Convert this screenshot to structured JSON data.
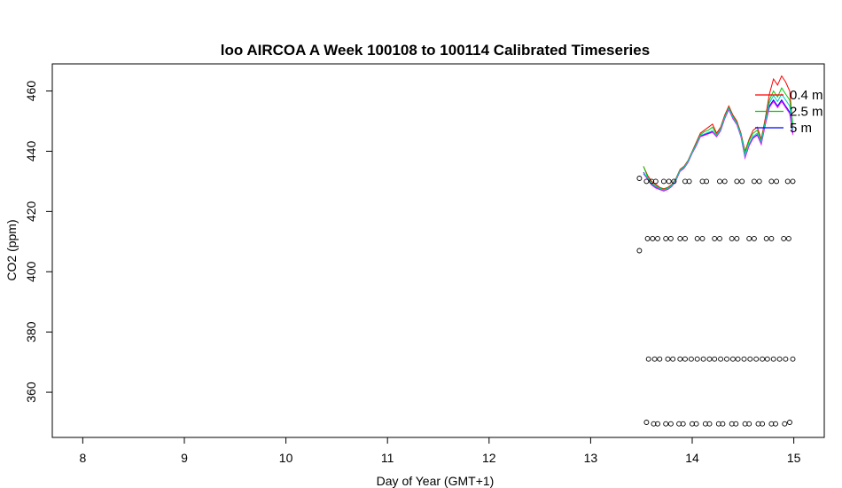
{
  "chart_data": {
    "type": "line",
    "title": "loo AIRCOA A  Week 100108 to 100114  Calibrated Timeseries",
    "xlabel": "Day of Year (GMT+1)",
    "ylabel": "CO2 (ppm)",
    "xlim": [
      7.7,
      15.3
    ],
    "ylim": [
      345,
      469
    ],
    "xticks": [
      "8",
      "9",
      "10",
      "11",
      "12",
      "13",
      "14",
      "15"
    ],
    "xtick_values": [
      8,
      9,
      10,
      11,
      12,
      13,
      14,
      15
    ],
    "yticks": [
      "360",
      "380",
      "400",
      "420",
      "440",
      "460"
    ],
    "ytick_values": [
      360,
      380,
      400,
      420,
      440,
      460
    ],
    "grid": false,
    "legend_position": "top-right",
    "series": [
      {
        "name": "0.4 m",
        "color": "#ff0000",
        "x": [
          13.52,
          13.56,
          13.6,
          13.64,
          13.68,
          13.72,
          13.76,
          13.8,
          13.84,
          13.88,
          13.92,
          13.96,
          14.0,
          14.04,
          14.08,
          14.12,
          14.16,
          14.2,
          14.24,
          14.28,
          14.32,
          14.36,
          14.4,
          14.44,
          14.48,
          14.52,
          14.56,
          14.6,
          14.64,
          14.68,
          14.72,
          14.76,
          14.8,
          14.84,
          14.88,
          14.92,
          14.96,
          14.99
        ],
        "y": [
          435,
          432,
          430,
          429,
          428,
          427.5,
          428,
          429,
          431,
          434,
          435,
          437,
          440,
          443,
          446,
          447,
          448,
          449,
          446,
          448,
          452,
          455,
          452,
          450,
          446,
          440,
          444,
          447,
          448,
          444,
          451,
          459,
          464,
          462,
          465,
          463,
          460,
          448
        ]
      },
      {
        "name": "2.5 m",
        "color": "#00cc00",
        "x": [
          13.52,
          13.56,
          13.6,
          13.64,
          13.68,
          13.72,
          13.76,
          13.8,
          13.84,
          13.88,
          13.92,
          13.96,
          14.0,
          14.04,
          14.08,
          14.12,
          14.16,
          14.2,
          14.24,
          14.28,
          14.32,
          14.36,
          14.4,
          14.44,
          14.48,
          14.52,
          14.56,
          14.6,
          14.64,
          14.68,
          14.72,
          14.76,
          14.8,
          14.84,
          14.88,
          14.92,
          14.96,
          14.99
        ],
        "y": [
          435,
          431.5,
          429.5,
          428.5,
          427.8,
          427.3,
          427.8,
          428.8,
          430.8,
          433.8,
          434.8,
          436.8,
          439.8,
          442.5,
          445.5,
          446.5,
          447,
          448,
          445.5,
          447.5,
          451.5,
          454.5,
          451.5,
          449.5,
          445.5,
          439.5,
          443.5,
          446,
          447,
          443.5,
          450,
          457,
          460,
          458,
          461,
          459,
          457,
          449
        ]
      },
      {
        "name": "5 m",
        "color": "#0000ff",
        "x": [
          13.52,
          13.56,
          13.6,
          13.64,
          13.68,
          13.72,
          13.76,
          13.8,
          13.84,
          13.88,
          13.92,
          13.96,
          14.0,
          14.04,
          14.08,
          14.12,
          14.16,
          14.2,
          14.24,
          14.28,
          14.32,
          14.36,
          14.4,
          14.44,
          14.48,
          14.52,
          14.56,
          14.6,
          14.64,
          14.68,
          14.72,
          14.76,
          14.8,
          14.84,
          14.88,
          14.92,
          14.96,
          14.99
        ],
        "y": [
          433,
          431,
          429,
          428,
          427.5,
          427,
          427.5,
          428.5,
          430.5,
          433.5,
          434.5,
          436.5,
          439.5,
          442,
          445,
          445.5,
          446,
          446.5,
          445,
          447,
          451,
          454,
          451,
          449,
          445,
          438,
          442,
          444.5,
          445.5,
          442.5,
          449,
          455,
          457,
          455,
          457,
          455,
          453,
          446
        ]
      },
      {
        "name": "",
        "color": "#ff00ff",
        "x": [
          13.52,
          13.56,
          13.6,
          13.64,
          13.68,
          13.72,
          13.76,
          13.8,
          13.84,
          13.88,
          13.92,
          13.96,
          14.0,
          14.04,
          14.08,
          14.12,
          14.16,
          14.2,
          14.24,
          14.28,
          14.32,
          14.36,
          14.4,
          14.44,
          14.48,
          14.52,
          14.56,
          14.6,
          14.64,
          14.68,
          14.72,
          14.76,
          14.8,
          14.84,
          14.88,
          14.92,
          14.96,
          14.99
        ],
        "y": [
          432.5,
          430.8,
          428.8,
          427.8,
          427.3,
          426.8,
          427.3,
          428.3,
          430.3,
          433.3,
          434.3,
          436.3,
          439.3,
          441.8,
          444.8,
          445.3,
          445.8,
          446.3,
          444.8,
          446.8,
          450.8,
          453.8,
          450.8,
          448.8,
          444.8,
          437.8,
          441.8,
          444.3,
          445.3,
          442.3,
          448.8,
          454.5,
          456.5,
          454.5,
          456.5,
          454.5,
          452.5,
          445.5
        ]
      },
      {
        "name": "",
        "color": "#00cccc",
        "x": [
          13.52,
          13.56,
          13.6,
          13.64,
          13.68,
          13.72,
          13.76,
          13.8,
          13.84,
          13.88,
          13.92,
          13.96,
          14.0,
          14.04,
          14.08,
          14.12,
          14.16,
          14.2,
          14.24,
          14.28,
          14.32,
          14.36,
          14.4,
          14.44,
          14.48,
          14.52,
          14.56,
          14.6,
          14.64,
          14.68,
          14.72,
          14.76,
          14.8,
          14.84,
          14.88,
          14.92,
          14.96,
          14.99
        ],
        "y": [
          432.8,
          431.2,
          429.2,
          428.2,
          427.6,
          427.1,
          427.6,
          428.6,
          430.6,
          433.6,
          434.6,
          436.6,
          439.6,
          442.2,
          445.2,
          445.8,
          446.3,
          446.8,
          445.2,
          447.2,
          451.2,
          454.2,
          451.2,
          449.2,
          445.2,
          438.5,
          442.5,
          445,
          446,
          443,
          449.5,
          456,
          458.5,
          456.5,
          459,
          457,
          455,
          447
        ]
      }
    ],
    "standards": [
      {
        "name": "",
        "marker": "open-circle",
        "x": [
          13.48,
          13.55,
          13.6,
          13.64,
          13.72,
          13.77,
          13.82,
          13.93,
          13.97,
          14.1,
          14.14,
          14.27,
          14.32,
          14.44,
          14.49,
          14.61,
          14.66,
          14.78,
          14.83,
          14.94,
          14.99
        ],
        "y": [
          431,
          430,
          430,
          430,
          430,
          430,
          430,
          430,
          430,
          430,
          430,
          430,
          430,
          430,
          430,
          430,
          430,
          430,
          430,
          430,
          430
        ]
      },
      {
        "name": "",
        "marker": "open-circle",
        "x": [
          13.48,
          13.56,
          13.61,
          13.66,
          13.74,
          13.79,
          13.88,
          13.93,
          14.05,
          14.1,
          14.22,
          14.27,
          14.39,
          14.44,
          14.56,
          14.61,
          14.73,
          14.78,
          14.9,
          14.95
        ],
        "y": [
          407,
          411,
          411,
          411,
          411,
          411,
          411,
          411,
          411,
          411,
          411,
          411,
          411,
          411,
          411,
          411,
          411,
          411,
          411,
          411
        ]
      },
      {
        "name": "",
        "marker": "open-circle",
        "x": [
          13.57,
          13.63,
          13.68,
          13.76,
          13.81,
          13.88,
          13.93,
          13.99,
          14.05,
          14.11,
          14.17,
          14.22,
          14.28,
          14.34,
          14.4,
          14.45,
          14.51,
          14.57,
          14.63,
          14.69,
          14.74,
          14.8,
          14.86,
          14.92,
          14.99
        ],
        "y": [
          371,
          371,
          371,
          371,
          371,
          371,
          371,
          371,
          371,
          371,
          371,
          371,
          371,
          371,
          371,
          371,
          371,
          371,
          371,
          371,
          371,
          371,
          371,
          371,
          371
        ]
      },
      {
        "name": "",
        "marker": "open-circle",
        "x": [
          13.55,
          13.62,
          13.66,
          13.74,
          13.79,
          13.87,
          13.91,
          14.0,
          14.04,
          14.13,
          14.17,
          14.26,
          14.3,
          14.39,
          14.43,
          14.52,
          14.56,
          14.65,
          14.69,
          14.78,
          14.82,
          14.91,
          14.96
        ],
        "y": [
          350,
          349.5,
          349.5,
          349.5,
          349.5,
          349.5,
          349.5,
          349.5,
          349.5,
          349.5,
          349.5,
          349.5,
          349.5,
          349.5,
          349.5,
          349.5,
          349.5,
          349.5,
          349.5,
          349.5,
          349.5,
          349.5,
          350
        ]
      }
    ]
  }
}
